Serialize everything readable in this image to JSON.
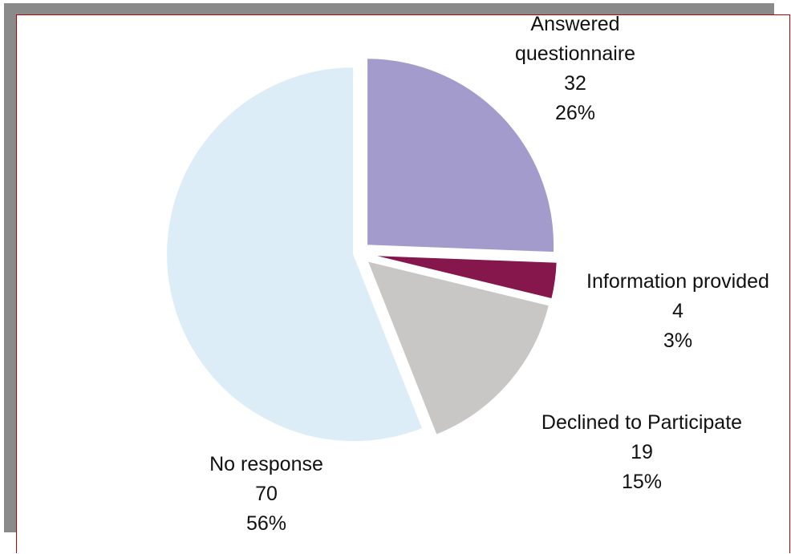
{
  "chart_data": {
    "type": "pie",
    "categories": [
      "Answered questionnaire",
      "Information provided",
      "Declined to Participate",
      "No response"
    ],
    "values": [
      32,
      4,
      19,
      70
    ],
    "percent_labels": [
      "26%",
      "3%",
      "15%",
      "56%"
    ],
    "colors": [
      "#a29bcb",
      "#86174d",
      "#c9c6c6",
      "#ddedf7"
    ]
  }
}
